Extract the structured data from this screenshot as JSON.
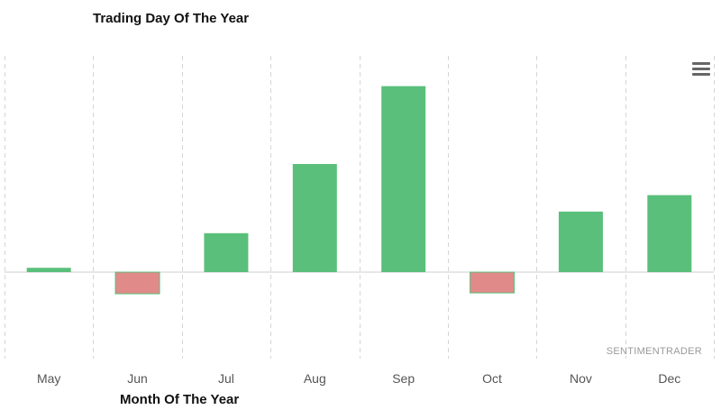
{
  "chart_data": {
    "type": "bar",
    "title": "Trading Day Of The Year",
    "xlabel": "Month Of The Year",
    "ylabel": "",
    "categories": [
      "May",
      "Jun",
      "Jul",
      "Aug",
      "Sep",
      "Oct",
      "Nov",
      "Dec"
    ],
    "values": [
      0.5,
      -2.5,
      4.5,
      12.5,
      21.5,
      -2.4,
      7.0,
      8.9
    ],
    "ylim": [
      -10,
      25
    ],
    "grid": "vertical dashed",
    "legend": "none",
    "colors": {
      "positive": "#5abf7a",
      "negative": "#e08a8a",
      "grid": "#d6d6d6",
      "zero_line": "#cccccc"
    }
  },
  "watermark": "SENTIMENTRADER",
  "menu_icon": "hamburger-menu-icon"
}
